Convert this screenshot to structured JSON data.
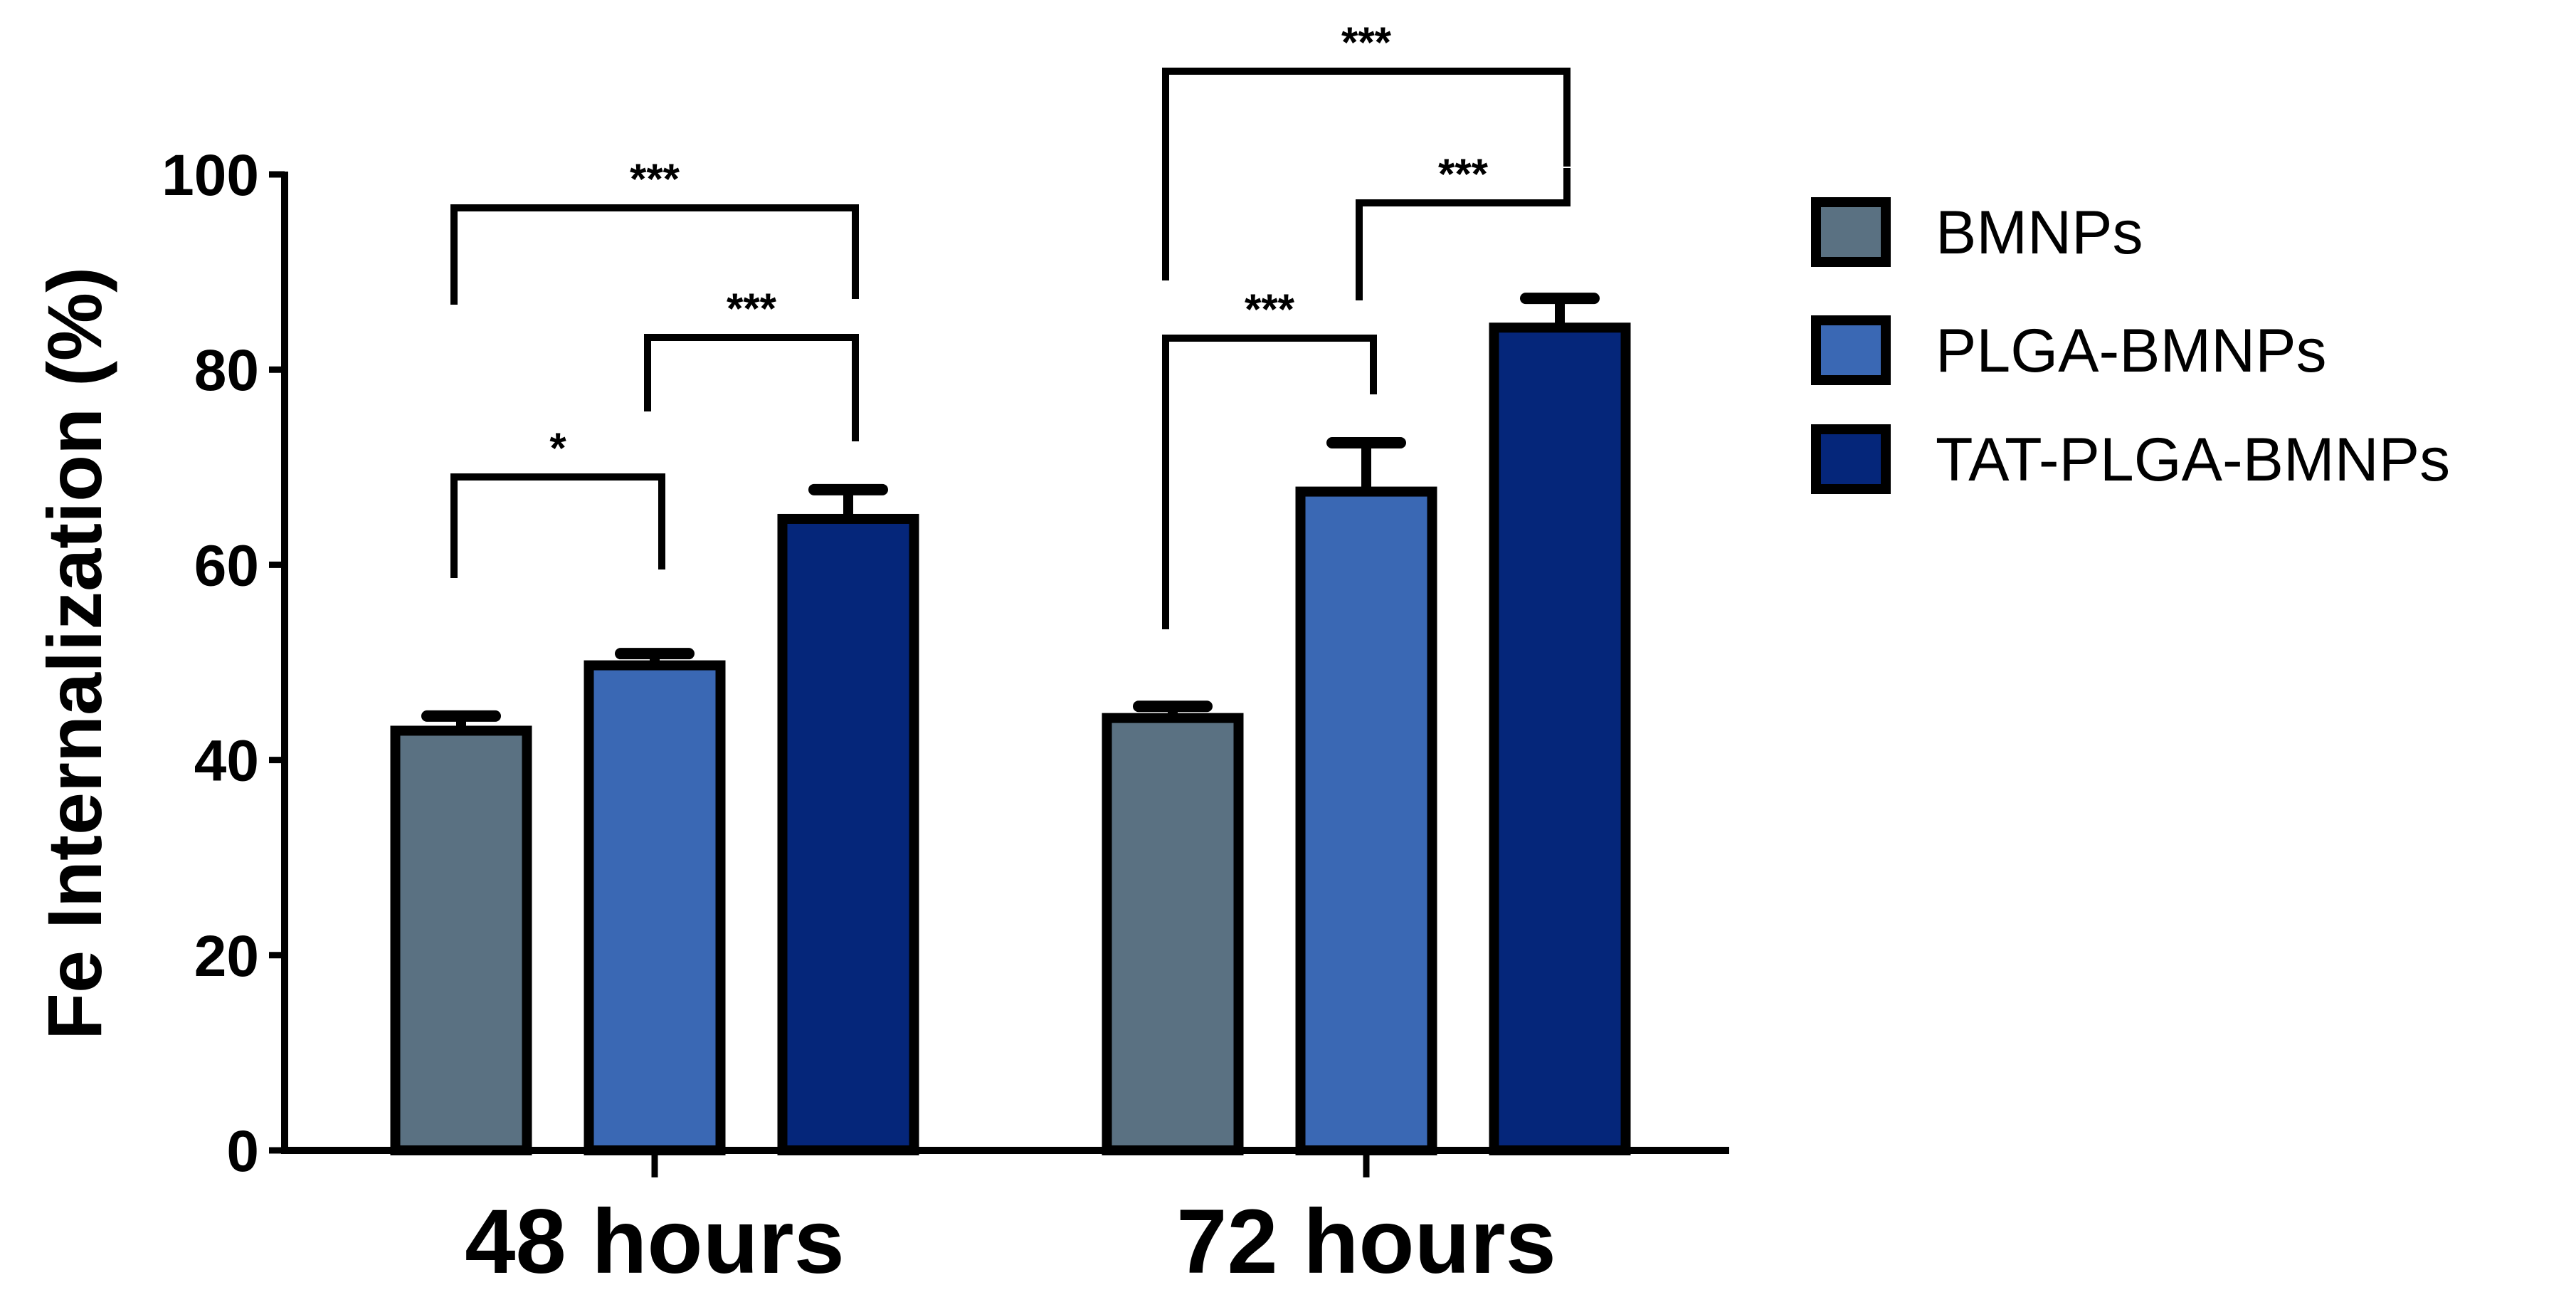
{
  "chart_data": {
    "type": "bar",
    "ylabel": "Fe Internalization (%)",
    "xlabel": "",
    "ylim": [
      0,
      100
    ],
    "yticks": [
      0,
      20,
      40,
      60,
      80,
      100
    ],
    "grid": false,
    "legend_position": "right",
    "categories": [
      "48 hours",
      "72 hours"
    ],
    "series": [
      {
        "name": "BMNPs",
        "color": "#5a7182",
        "values": [
          43,
          44.3
        ],
        "errors": [
          1.5,
          1.2
        ]
      },
      {
        "name": "PLGA-BMNPs",
        "color": "#3a68b4",
        "values": [
          49.7,
          67.5
        ],
        "errors": [
          1.2,
          5.0
        ]
      },
      {
        "name": "TAT-PLGA-BMNPs",
        "color": "#05267a",
        "values": [
          64.7,
          84.3
        ],
        "errors": [
          3.0,
          3.0
        ]
      }
    ],
    "significance": [
      {
        "group": 0,
        "from": 0,
        "to": 1,
        "label": "*"
      },
      {
        "group": 0,
        "from": 1,
        "to": 2,
        "label": "***"
      },
      {
        "group": 0,
        "from": 0,
        "to": 2,
        "label": "***"
      },
      {
        "group": 1,
        "from": 0,
        "to": 1,
        "label": "***"
      },
      {
        "group": 1,
        "from": 1,
        "to": 2,
        "label": "***"
      },
      {
        "group": 1,
        "from": 0,
        "to": 2,
        "label": "***"
      }
    ]
  }
}
